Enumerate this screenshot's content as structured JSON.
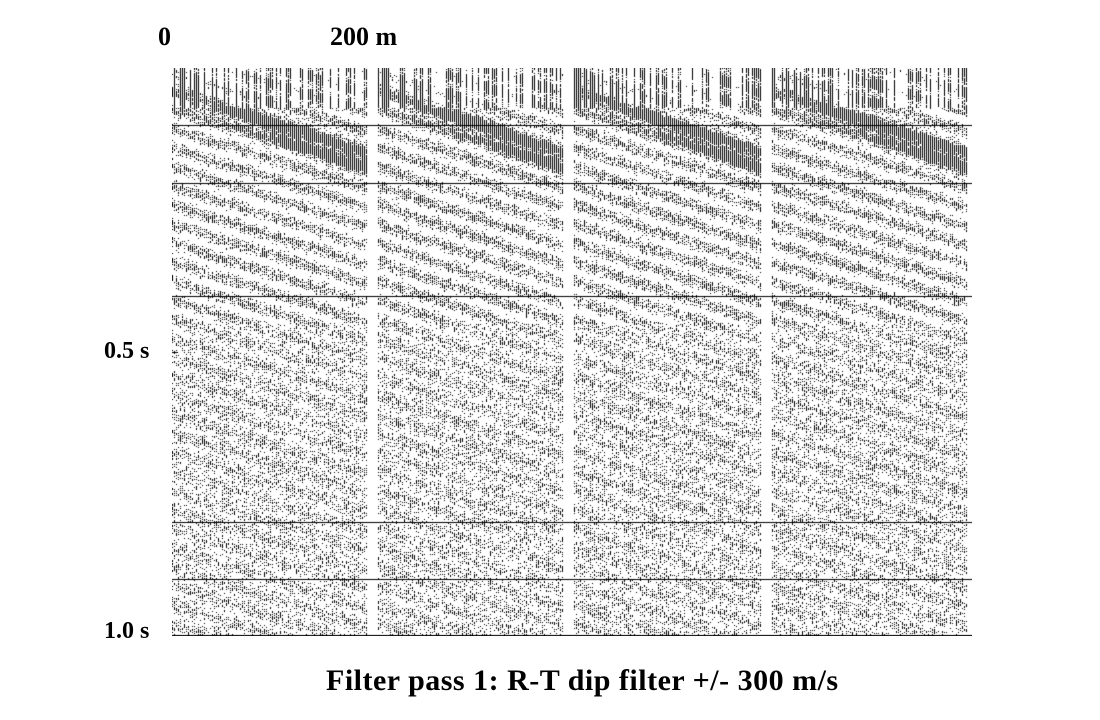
{
  "figure": {
    "distance_axis": {
      "start_label": "0",
      "marker_label": "200 m"
    },
    "time_axis": {
      "mid_label": "0.5 s",
      "end_label": "1.0 s"
    },
    "caption": "Filter pass 1: R-T dip filter +/- 300 m/s",
    "colors": {
      "ink": "#000000",
      "paper": "#ffffff"
    }
  }
}
